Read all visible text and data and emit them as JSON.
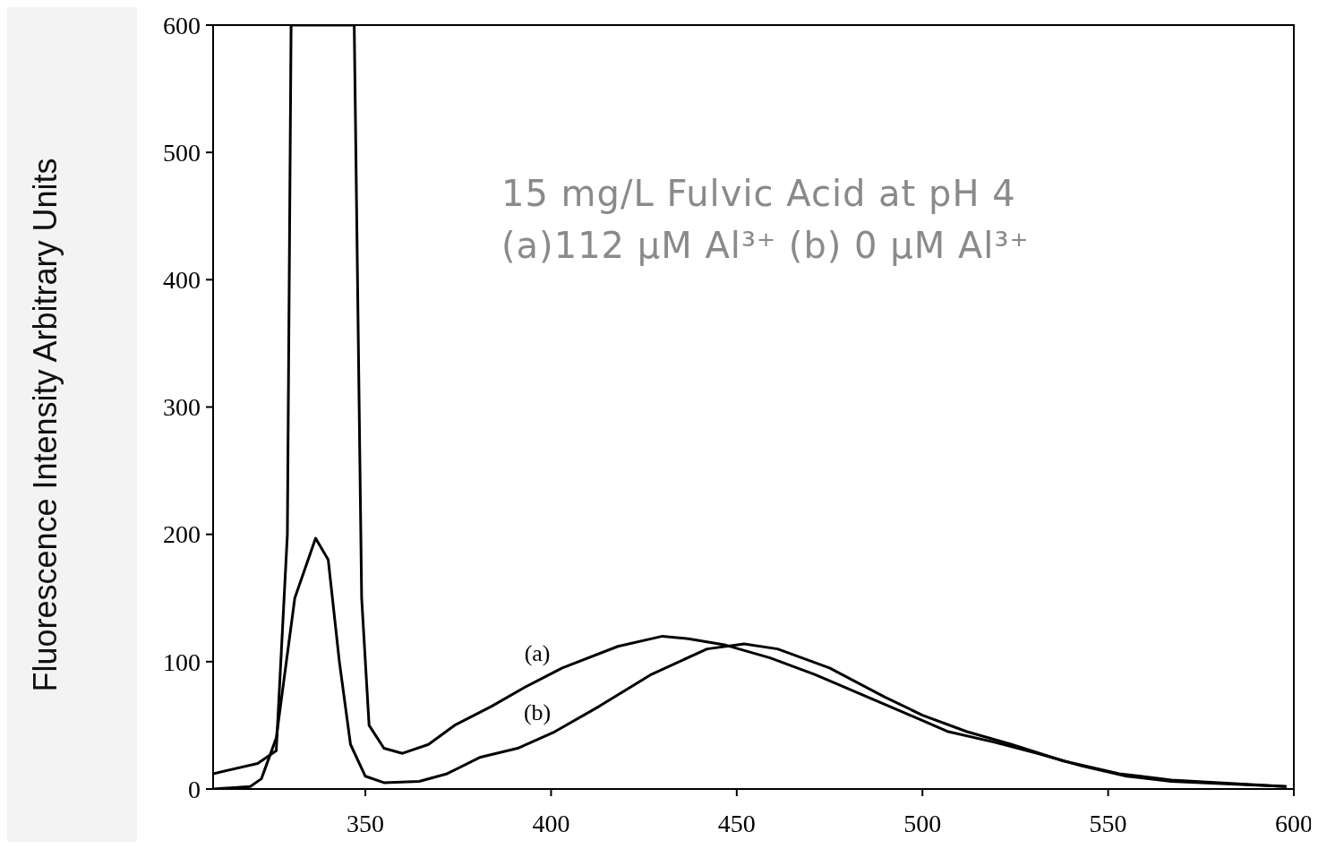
{
  "chart_data": {
    "type": "line",
    "ylabel": "Fluorescence Intensity Arbitrary Units",
    "xlim": [
      309,
      600
    ],
    "ylim": [
      0,
      600
    ],
    "xticks": [
      350,
      400,
      450,
      500,
      550,
      600
    ],
    "yticks": [
      0,
      100,
      200,
      300,
      400,
      500,
      600
    ],
    "grid": false,
    "marker": "none",
    "line_style": "solid",
    "annotations": [
      "15 mg/L Fulvic Acid at pH 4",
      "(a)112 μM Al³⁺ (b) 0 μM Al³⁺"
    ],
    "series": [
      {
        "name": "(a)",
        "color": "#000000",
        "x": [
          309,
          321,
          326,
          329,
          330,
          347,
          349,
          351,
          355,
          360,
          367,
          374,
          384,
          393,
          403,
          418,
          430,
          437,
          447,
          459,
          471,
          483,
          495,
          507,
          519,
          531,
          543,
          555,
          567,
          598
        ],
        "values": [
          12,
          20,
          30,
          200,
          600,
          600,
          150,
          50,
          32,
          28,
          35,
          50,
          65,
          80,
          95,
          112,
          120,
          118,
          113,
          103,
          90,
          75,
          60,
          45,
          37,
          28,
          18,
          10,
          6,
          2
        ]
      },
      {
        "name": "(b)",
        "color": "#000000",
        "x": [
          309,
          319,
          322,
          326,
          331,
          336.6,
          340,
          343,
          346,
          350,
          355,
          364.5,
          372,
          381,
          391,
          401,
          413,
          427,
          442,
          452,
          461,
          475,
          490,
          500,
          512,
          524,
          538,
          553,
          567,
          598
        ],
        "values": [
          0,
          2,
          8,
          40,
          150,
          197,
          180,
          100,
          35,
          10,
          5,
          6,
          12,
          25,
          32,
          45,
          65,
          90,
          110,
          114,
          110,
          95,
          72,
          58,
          45,
          35,
          22,
          12,
          7,
          2
        ]
      }
    ]
  }
}
